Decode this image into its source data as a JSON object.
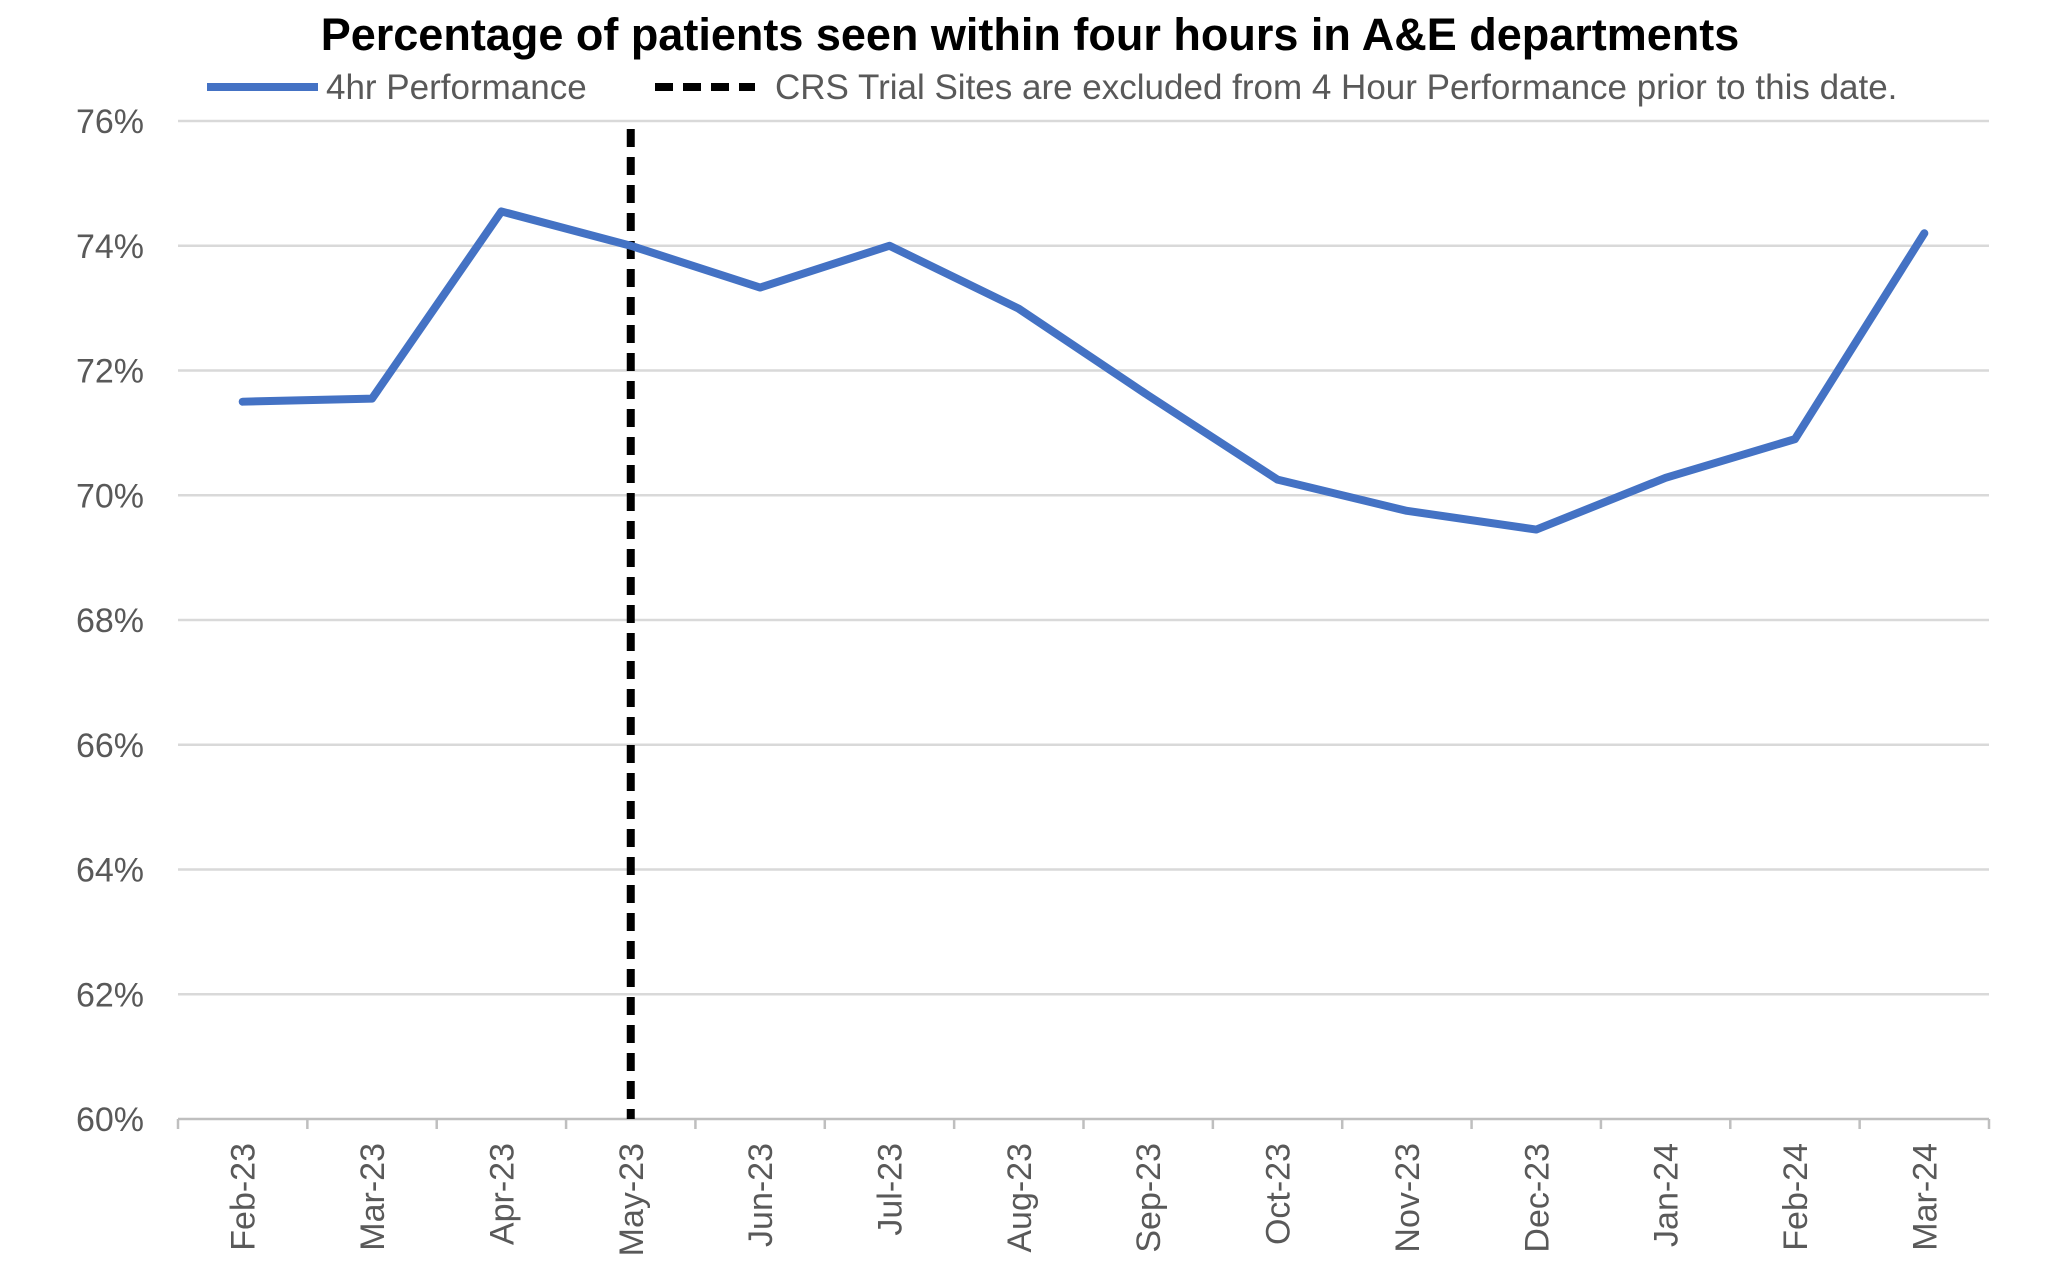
{
  "chart_data": {
    "type": "line",
    "title": "Percentage of patients seen within four hours in A&E departments",
    "xlabel": "",
    "ylabel": "",
    "categories": [
      "Feb-23",
      "Mar-23",
      "Apr-23",
      "May-23",
      "Jun-23",
      "Jul-23",
      "Aug-23",
      "Sep-23",
      "Oct-23",
      "Nov-23",
      "Dec-23",
      "Jan-24",
      "Feb-24",
      "Mar-24"
    ],
    "series": [
      {
        "name": "4hr Performance",
        "color": "#4472C4",
        "values": [
          71.5,
          71.55,
          74.55,
          74.0,
          73.33,
          74.0,
          72.99,
          71.6,
          70.25,
          69.75,
          69.45,
          70.28,
          70.9,
          74.2
        ]
      }
    ],
    "reference_line": {
      "name": "CRS Trial Sites are excluded from 4 Hour Performance prior to this date.",
      "category": "May-23",
      "style": "dashed",
      "color": "#000000"
    },
    "ylim": [
      60,
      76
    ],
    "yticks": [
      60,
      62,
      64,
      66,
      68,
      70,
      72,
      74,
      76
    ],
    "ytick_labels": [
      "60%",
      "62%",
      "64%",
      "66%",
      "68%",
      "70%",
      "72%",
      "74%",
      "76%"
    ],
    "grid": "horizontal",
    "legend": "top"
  }
}
